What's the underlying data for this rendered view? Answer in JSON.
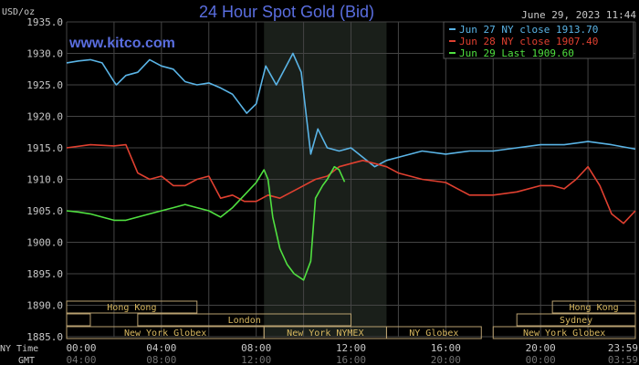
{
  "chart_data": {
    "type": "line",
    "title": "24 Hour Spot Gold (Bid)",
    "ylabel": "USD/oz",
    "watermark": "www.kitco.com",
    "timestamp": "June 29, 2023 11:44",
    "ylim": [
      1885,
      1935
    ],
    "yticks": [
      "1935.0",
      "1930.0",
      "1925.0",
      "1920.0",
      "1915.0",
      "1910.0",
      "1905.0",
      "1900.0",
      "1895.0",
      "1890.0",
      "1885.0"
    ],
    "x_unit": "NY time, hours",
    "xlim": [
      0,
      24
    ],
    "xaxis_rows": [
      {
        "label": "NY Time",
        "ticks": [
          "00:00",
          "04:00",
          "08:00",
          "12:00",
          "16:00",
          "20:00",
          "23:59"
        ]
      },
      {
        "label": "GMT",
        "ticks": [
          "04:00",
          "08:00",
          "12:00",
          "16:00",
          "20:00",
          "00:00",
          "03:59"
        ]
      }
    ],
    "grid": true,
    "shaded_session_hours": [
      8.33,
      13.5
    ],
    "legend_position": "top-right",
    "sessions": [
      {
        "name": "Hong Kong",
        "start": 0,
        "end": 5.5,
        "row": 0
      },
      {
        "name": "Hong Kong",
        "start": 20.5,
        "end": 24,
        "row": 0
      },
      {
        "name": "",
        "start": 0,
        "end": 1,
        "row": 1
      },
      {
        "name": "London",
        "start": 3,
        "end": 12,
        "row": 1
      },
      {
        "name": "Sydney",
        "start": 19,
        "end": 24,
        "row": 1
      },
      {
        "name": "New York Globex",
        "start": 0,
        "end": 8.33,
        "row": 2
      },
      {
        "name": "New York NYMEX",
        "start": 8.33,
        "end": 13.5,
        "row": 2
      },
      {
        "name": "NY Globex",
        "start": 13.5,
        "end": 17.5,
        "row": 2
      },
      {
        "name": "New York Globex",
        "start": 18,
        "end": 24,
        "row": 2
      }
    ],
    "series": [
      {
        "name": "Jun 27 NY close 1913.70",
        "color": "#5ab4e6",
        "x": [
          0,
          0.5,
          1,
          1.5,
          2,
          2.1,
          2.5,
          3,
          3.5,
          4,
          4.5,
          5,
          5.5,
          6,
          6.5,
          7,
          7.6,
          8,
          8.4,
          8.85,
          9.2,
          9.55,
          9.9,
          10.3,
          10.6,
          11,
          11.5,
          12,
          12.5,
          13,
          13.5,
          14,
          15,
          16,
          17,
          18,
          19,
          20,
          21,
          22,
          23,
          24
        ],
        "y": [
          1928.5,
          1928.8,
          1929,
          1928.5,
          1925.5,
          1925,
          1926.5,
          1927,
          1929,
          1928,
          1927.5,
          1925.5,
          1925,
          1925.3,
          1924.5,
          1923.5,
          1920.5,
          1922,
          1928,
          1925,
          1927.5,
          1930,
          1927,
          1914,
          1918,
          1915,
          1914.5,
          1915,
          1913.5,
          1912,
          1913,
          1913.5,
          1914.5,
          1914,
          1914.5,
          1914.5,
          1915,
          1915.5,
          1915.5,
          1916,
          1915.5,
          1914.8
        ]
      },
      {
        "name": "Jun 28 NY close 1907.40",
        "color": "#e04030",
        "x": [
          0,
          1,
          2,
          2.5,
          3,
          3.5,
          4,
          4.5,
          5,
          5.5,
          6,
          6.5,
          7,
          7.5,
          8,
          8.5,
          9,
          9.5,
          10,
          10.5,
          11,
          11.5,
          12,
          12.5,
          13,
          13.5,
          14,
          15,
          16,
          16.5,
          17,
          18,
          19,
          20,
          20.5,
          21,
          21.5,
          22,
          22.5,
          23,
          23.5,
          24
        ],
        "y": [
          1915,
          1915.5,
          1915.3,
          1915.5,
          1911,
          1910,
          1910.5,
          1909,
          1909,
          1910,
          1910.5,
          1907,
          1907.5,
          1906.5,
          1906.5,
          1907.5,
          1907,
          1908,
          1909,
          1910,
          1910.5,
          1912,
          1912.5,
          1913,
          1912.5,
          1912,
          1911,
          1910,
          1909.5,
          1908.5,
          1907.5,
          1907.5,
          1908,
          1909,
          1909,
          1908.5,
          1910,
          1912,
          1909,
          1904.5,
          1903,
          1905
        ]
      },
      {
        "name": "Jun 29 Last 1909.60",
        "color": "#50e040",
        "x": [
          0,
          0.5,
          1,
          1.5,
          2,
          2.5,
          3,
          3.5,
          4,
          4.5,
          5,
          5.5,
          6,
          6.5,
          7,
          7.5,
          8,
          8.33,
          8.5,
          8.7,
          9,
          9.3,
          9.6,
          10,
          10.3,
          10.5,
          10.8,
          11,
          11.3,
          11.5,
          11.73
        ],
        "y": [
          1905,
          1904.8,
          1904.5,
          1904,
          1903.5,
          1903.5,
          1904,
          1904.5,
          1905,
          1905.5,
          1906,
          1905.5,
          1905,
          1904,
          1905.5,
          1907.5,
          1909.5,
          1911.5,
          1910,
          1904,
          1899,
          1896.5,
          1895,
          1894,
          1897,
          1907,
          1909,
          1910,
          1912,
          1911.5,
          1909.6
        ]
      }
    ]
  }
}
